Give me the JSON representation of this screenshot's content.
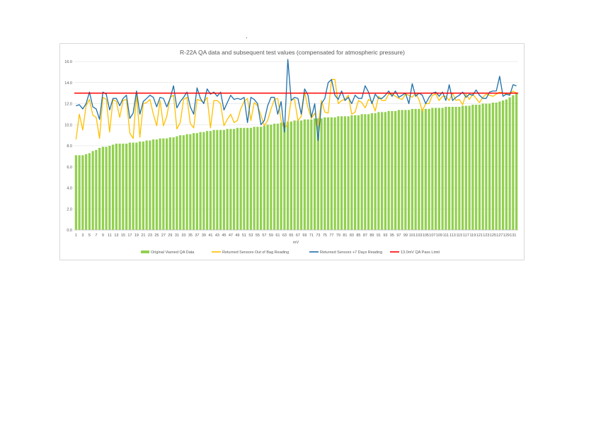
{
  "page_mark": ".",
  "chart_data": {
    "type": "bar",
    "title": "R-22A QA data and subsequent test values (compensated for atmospheric pressure)",
    "xlabel": "mV",
    "ylabel": "",
    "ylim": [
      0,
      16
    ],
    "yticks": [
      "0.0",
      "2.0",
      "4.0",
      "6.0",
      "8.0",
      "10.0",
      "12.0",
      "14.0",
      "16.0"
    ],
    "xtick_labels": [
      "1",
      "3",
      "5",
      "7",
      "9",
      "11",
      "13",
      "15",
      "17",
      "19",
      "21",
      "23",
      "25",
      "27",
      "29",
      "31",
      "33",
      "35",
      "37",
      "39",
      "41",
      "43",
      "45",
      "47",
      "49",
      "51",
      "53",
      "55",
      "57",
      "59",
      "61",
      "63",
      "65",
      "67",
      "69",
      "71",
      "73",
      "75",
      "77",
      "79",
      "81",
      "83",
      "85",
      "87",
      "89",
      "91",
      "93",
      "95",
      "97",
      "99",
      "101",
      "103",
      "105",
      "107",
      "109",
      "111",
      "113",
      "115",
      "117",
      "119",
      "121",
      "123",
      "125",
      "127",
      "129",
      "131"
    ],
    "grid": "horizontal",
    "legend_position": "bottom",
    "categories_count": 132,
    "series": [
      {
        "name": "Original Viamed QA Data",
        "kind": "bar",
        "color": "#92d050",
        "values": [
          7.1,
          7.1,
          7.1,
          7.2,
          7.3,
          7.5,
          7.6,
          7.8,
          7.9,
          7.9,
          8.0,
          8.1,
          8.2,
          8.2,
          8.2,
          8.2,
          8.3,
          8.3,
          8.3,
          8.4,
          8.4,
          8.5,
          8.5,
          8.6,
          8.6,
          8.7,
          8.7,
          8.7,
          8.8,
          8.8,
          8.9,
          9.0,
          9.0,
          9.1,
          9.1,
          9.2,
          9.2,
          9.3,
          9.3,
          9.4,
          9.4,
          9.5,
          9.5,
          9.5,
          9.5,
          9.6,
          9.6,
          9.6,
          9.7,
          9.7,
          9.7,
          9.7,
          9.7,
          9.8,
          9.8,
          9.8,
          9.9,
          10.0,
          10.0,
          10.1,
          10.1,
          10.2,
          10.2,
          10.3,
          10.3,
          10.4,
          10.4,
          10.4,
          10.5,
          10.5,
          10.5,
          10.6,
          10.6,
          10.6,
          10.7,
          10.7,
          10.7,
          10.7,
          10.8,
          10.8,
          10.8,
          10.8,
          10.9,
          10.9,
          10.9,
          11.0,
          11.0,
          11.0,
          11.1,
          11.1,
          11.2,
          11.2,
          11.2,
          11.3,
          11.3,
          11.3,
          11.4,
          11.4,
          11.4,
          11.4,
          11.5,
          11.5,
          11.5,
          11.5,
          11.5,
          11.5,
          11.6,
          11.6,
          11.6,
          11.6,
          11.7,
          11.7,
          11.7,
          11.7,
          11.7,
          11.8,
          11.8,
          11.8,
          11.9,
          11.9,
          11.9,
          12.0,
          12.0,
          12.0,
          12.1,
          12.1,
          12.2,
          12.3,
          12.4,
          12.6,
          12.8,
          13.0
        ]
      },
      {
        "name": "Returned Sensors Out of Bag Reading",
        "kind": "line",
        "color": "#ffc000",
        "values": [
          8.6,
          11.0,
          9.5,
          11.8,
          12.4,
          10.9,
          10.7,
          8.7,
          12.6,
          12.4,
          9.3,
          12.4,
          12.2,
          10.7,
          12.3,
          12.4,
          9.2,
          8.7,
          12.9,
          8.8,
          12.0,
          12.1,
          12.4,
          11.0,
          9.9,
          12.3,
          9.9,
          10.8,
          12.6,
          12.8,
          9.6,
          10.2,
          12.4,
          12.6,
          10.1,
          9.7,
          12.4,
          12.3,
          12.1,
          12.6,
          9.7,
          12.3,
          12.3,
          12.0,
          9.9,
          10.5,
          11.0,
          10.2,
          10.4,
          11.5,
          12.2,
          12.5,
          10.4,
          12.1,
          11.8,
          10.9,
          9.9,
          10.4,
          11.5,
          12.4,
          12.5,
          10.4,
          9.6,
          10.1,
          12.4,
          12.4,
          10.4,
          10.8,
          13.1,
          11.6,
          10.6,
          11.1,
          9.9,
          12.3,
          11.2,
          11.1,
          14.3,
          14.3,
          12.0,
          12.3,
          12.4,
          12.8,
          11.0,
          11.2,
          12.3,
          12.1,
          11.6,
          12.4,
          12.2,
          11.3,
          12.7,
          12.3,
          12.3,
          12.9,
          12.9,
          12.7,
          12.5,
          12.4,
          12.9,
          12.8,
          12.6,
          13.0,
          12.4,
          11.3,
          12.0,
          12.0,
          12.8,
          12.9,
          12.3,
          12.7,
          12.7,
          12.3,
          13.0,
          12.3,
          12.4,
          11.9,
          12.9,
          12.4,
          12.9,
          12.5,
          12.1,
          12.6,
          12.9,
          12.8,
          12.7,
          12.9,
          13.1,
          13.0,
          12.9,
          12.9,
          13.2,
          13.0
        ]
      },
      {
        "name": "Returned Sensors +7 Days Reading",
        "kind": "line",
        "color": "#1f6fa8",
        "values": [
          11.8,
          11.9,
          11.5,
          12.0,
          13.1,
          11.7,
          11.5,
          10.5,
          13.1,
          12.9,
          11.4,
          12.5,
          12.5,
          11.8,
          12.5,
          12.8,
          10.6,
          11.1,
          13.2,
          11.0,
          12.2,
          12.5,
          12.8,
          12.6,
          11.7,
          12.6,
          12.5,
          11.7,
          12.5,
          13.7,
          11.6,
          12.2,
          12.6,
          13.1,
          11.7,
          11.0,
          13.5,
          12.5,
          12.0,
          13.4,
          12.9,
          13.1,
          12.7,
          13.1,
          11.4,
          12.1,
          12.8,
          12.4,
          12.5,
          12.4,
          12.6,
          10.2,
          12.6,
          12.4,
          12.0,
          10.0,
          10.4,
          11.8,
          12.6,
          12.6,
          11.0,
          12.2,
          9.3,
          16.2,
          12.3,
          12.6,
          12.5,
          11.0,
          13.4,
          12.8,
          10.7,
          12.0,
          8.5,
          12.0,
          12.5,
          14.0,
          14.3,
          12.8,
          12.4,
          13.2,
          12.3,
          12.6,
          12.0,
          12.8,
          12.5,
          12.5,
          13.7,
          13.1,
          12.0,
          12.9,
          12.5,
          12.5,
          12.8,
          13.2,
          12.7,
          13.2,
          12.6,
          12.8,
          13.0,
          12.0,
          13.9,
          12.7,
          13.0,
          12.8,
          12.0,
          12.6,
          13.0,
          13.1,
          12.7,
          13.1,
          12.3,
          13.8,
          12.3,
          12.6,
          12.8,
          13.1,
          12.6,
          12.9,
          12.8,
          13.3,
          12.8,
          12.5,
          12.5,
          13.1,
          13.2,
          13.2,
          14.6,
          12.7,
          12.9,
          12.8,
          13.8,
          13.7
        ]
      },
      {
        "name": "13.0mV QA Pass Limit",
        "kind": "line",
        "color": "#ff0000",
        "constant": 13.0
      }
    ]
  }
}
